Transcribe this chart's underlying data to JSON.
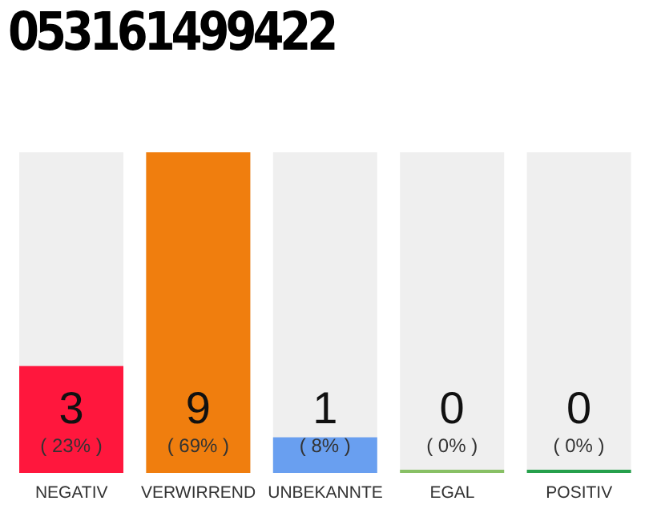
{
  "chart_data": {
    "type": "bar",
    "title": "053161499422",
    "categories": [
      "NEGATIV",
      "VERWIRREND",
      "UNBEKANNTE",
      "EGAL",
      "POSITIV"
    ],
    "values": [
      3,
      9,
      1,
      0,
      0
    ],
    "colors": [
      "#ff173d",
      "#f07e0e",
      "#699ff0",
      "#88c065",
      "#26a04c"
    ],
    "value_labels": [
      "3 ( 23% )",
      "9 ( 69% )",
      "1 ( 8% )",
      "0 ( 0% )",
      "0 ( 0% )"
    ],
    "ylim": [
      0,
      9
    ],
    "tick_labels": "x",
    "grid": false,
    "legend": false
  }
}
